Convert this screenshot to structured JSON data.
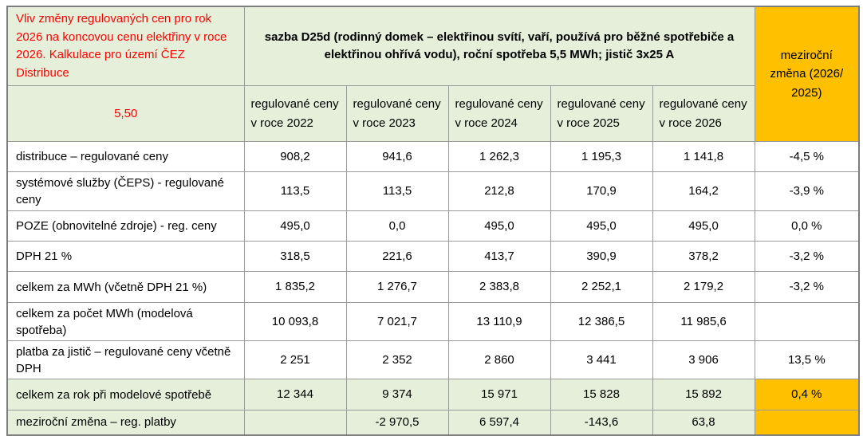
{
  "table": {
    "title_cell": "Vliv změny regulovaných cen pro rok 2026 na koncovou cenu elektřiny v roce 2026. Kalkulace pro území ČEZ Distribuce",
    "main_header": "sazba D25d (rodinný domek – elektřinou svítí, vaří, používá pro běžné spotřebiče a elektřinou ohřívá vodu), roční spotřeba 5,5 MWh; jistič 3x25 A",
    "yoy_header": "meziroční změna (2026/ 2025)",
    "consumption_mwh": "5,50",
    "year_headers": [
      "regulované ceny v roce 2022",
      "regulované ceny v roce 2023",
      "regulované ceny v roce 2024",
      "regulované ceny v roce 2025",
      "regulované ceny v roce 2026"
    ],
    "rows": [
      {
        "label": "distribuce – regulované ceny",
        "values": [
          "908,2",
          "941,6",
          "1 262,3",
          "1 195,3",
          "1 141,8"
        ],
        "yoy": "-4,5 %"
      },
      {
        "label": "systémové služby (ČEPS) - regulované ceny",
        "values": [
          "113,5",
          "113,5",
          "212,8",
          "170,9",
          "164,2"
        ],
        "yoy": "-3,9 %"
      },
      {
        "label": "POZE (obnovitelné zdroje) - reg. ceny",
        "values": [
          "495,0",
          "0,0",
          "495,0",
          "495,0",
          "495,0"
        ],
        "yoy": "0,0 %"
      },
      {
        "label": "DPH 21 %",
        "values": [
          "318,5",
          "221,6",
          "413,7",
          "390,9",
          "378,2"
        ],
        "yoy": "-3,2 %"
      },
      {
        "label": "celkem za MWh (včetně DPH 21 %)",
        "values": [
          "1 835,2",
          "1 276,7",
          "2 383,8",
          "2 252,1",
          "2 179,2"
        ],
        "yoy": "-3,2 %"
      },
      {
        "label": "celkem za počet MWh (modelová spotřeba)",
        "values": [
          "10 093,8",
          "7 021,7",
          "13 110,9",
          "12 386,5",
          "11 985,6"
        ],
        "yoy": ""
      },
      {
        "label": "platba za jistič – regulované ceny včetně DPH",
        "values": [
          "2 251",
          "2 352",
          "2 860",
          "3 441",
          "3 906"
        ],
        "yoy": "13,5 %"
      },
      {
        "label": "celkem za rok při modelové spotřebě",
        "values": [
          "12 344",
          "9 374",
          "15 971",
          "15 828",
          "15 892"
        ],
        "yoy": "0,4 %"
      },
      {
        "label": "meziroční změna – reg. platby",
        "values": [
          "",
          "-2 970,5",
          "6 597,4",
          "-143,6",
          "63,8"
        ],
        "yoy": ""
      }
    ],
    "colors": {
      "header_green": "#E6EFDA",
      "total_row_green": "#E6EFDA",
      "yoy_orange": "#FFC000",
      "title_red": "#FF0000",
      "grid_border": "#999999"
    }
  }
}
